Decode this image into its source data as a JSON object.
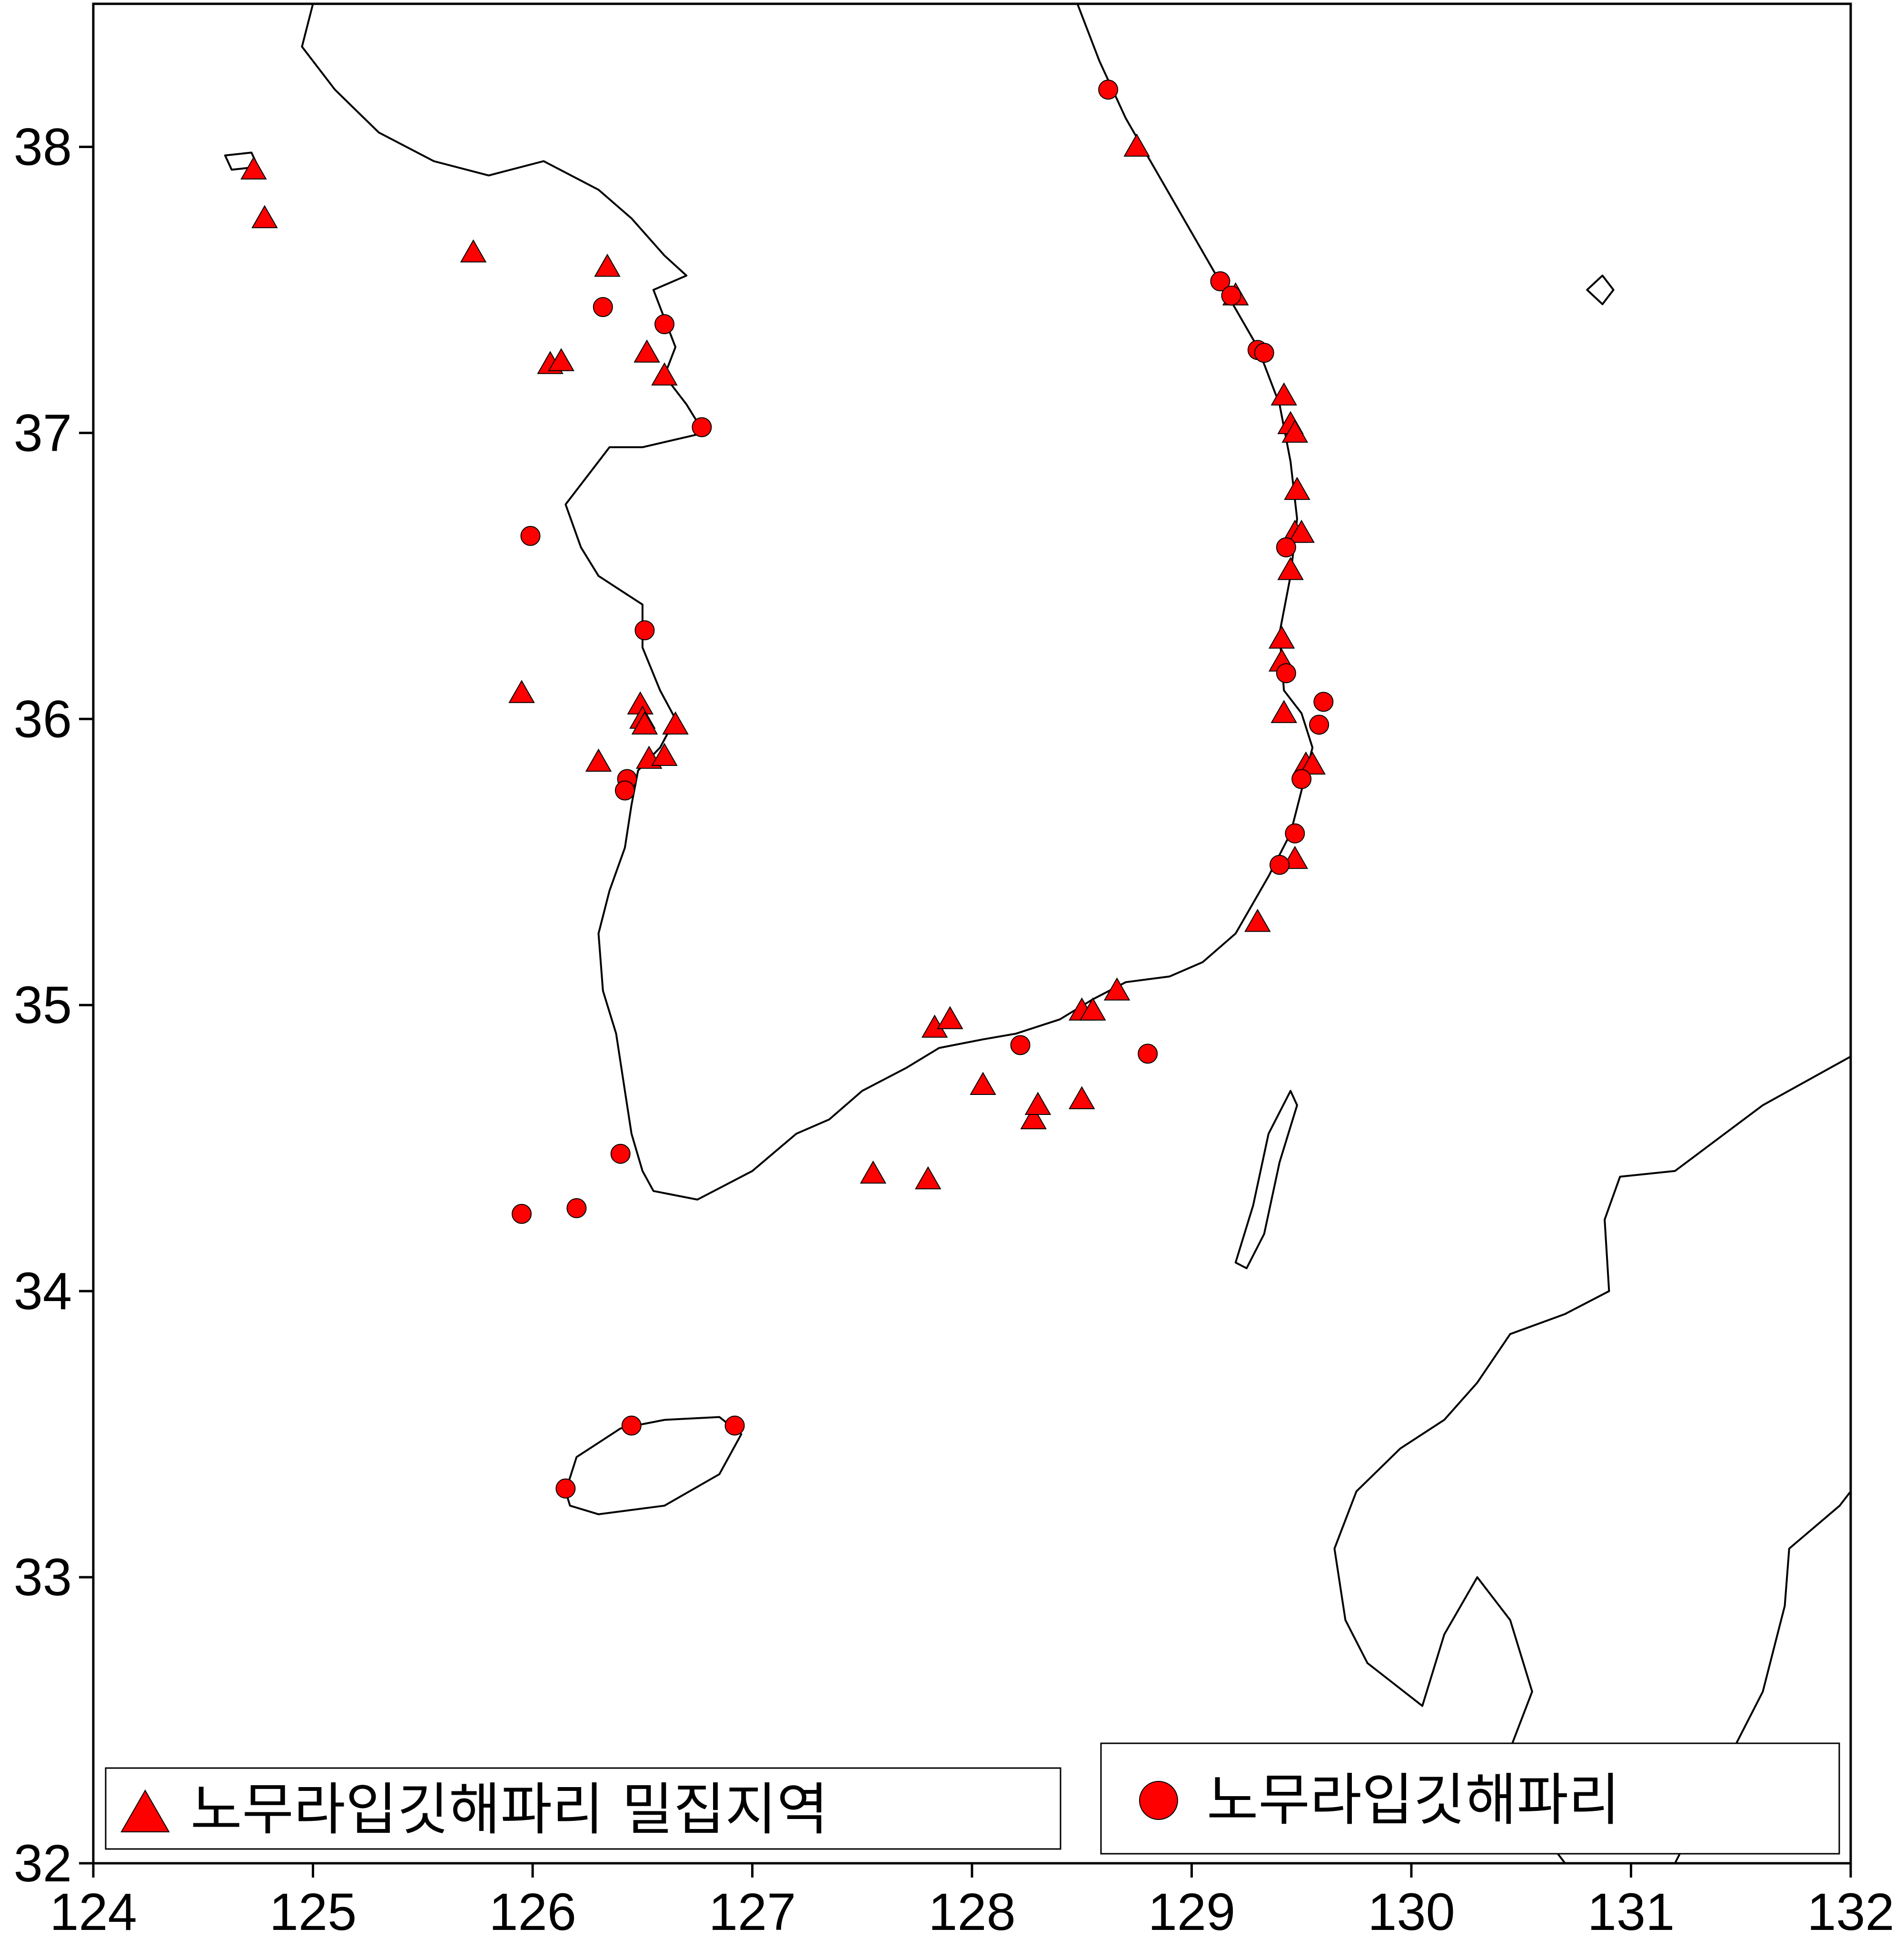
{
  "map": {
    "x_range": [
      124,
      132
    ],
    "y_range": [
      32,
      38.5
    ],
    "x_ticks": [
      "124",
      "125",
      "126",
      "127",
      "128",
      "129",
      "130",
      "131",
      "132"
    ],
    "y_ticks": [
      "32",
      "33",
      "34",
      "35",
      "36",
      "37",
      "38"
    ],
    "marker_color": "#ff0000",
    "coastline_color": "#000000"
  },
  "legend": {
    "triangle_label": "노무라입깃해파리 밀집지역",
    "circle_label": "노무라입깃해파리",
    "triangle_icon": "red-triangle-marker",
    "circle_icon": "red-circle-marker"
  },
  "chart_data": {
    "type": "scatter",
    "xlim": [
      124,
      132
    ],
    "ylim": [
      32,
      38.5
    ],
    "grid": false,
    "legend_placement": "bottom",
    "series": [
      {
        "name": "노무라입깃해파리 밀집지역",
        "marker": "triangle",
        "color": "#ff0000",
        "points": [
          [
            124.73,
            37.92
          ],
          [
            124.78,
            37.75
          ],
          [
            125.73,
            37.63
          ],
          [
            126.34,
            37.58
          ],
          [
            126.52,
            37.28
          ],
          [
            126.08,
            37.24
          ],
          [
            126.13,
            37.25
          ],
          [
            126.6,
            37.2
          ],
          [
            125.95,
            36.09
          ],
          [
            126.49,
            36.05
          ],
          [
            126.5,
            36.0
          ],
          [
            126.51,
            35.98
          ],
          [
            126.65,
            35.98
          ],
          [
            126.3,
            35.85
          ],
          [
            126.53,
            35.86
          ],
          [
            126.6,
            35.87
          ],
          [
            127.55,
            34.41
          ],
          [
            127.8,
            34.39
          ],
          [
            127.83,
            34.92
          ],
          [
            127.9,
            34.95
          ],
          [
            128.05,
            34.72
          ],
          [
            128.28,
            34.6
          ],
          [
            128.3,
            34.65
          ],
          [
            128.5,
            34.67
          ],
          [
            128.5,
            34.98
          ],
          [
            128.55,
            34.98
          ],
          [
            128.66,
            35.05
          ],
          [
            128.75,
            38.0
          ],
          [
            129.2,
            37.48
          ],
          [
            129.42,
            37.13
          ],
          [
            129.45,
            37.03
          ],
          [
            129.47,
            37.0
          ],
          [
            129.48,
            36.8
          ],
          [
            129.47,
            36.65
          ],
          [
            129.5,
            36.65
          ],
          [
            129.45,
            36.52
          ],
          [
            129.41,
            36.28
          ],
          [
            129.41,
            36.2
          ],
          [
            129.42,
            36.02
          ],
          [
            129.52,
            35.84
          ],
          [
            129.55,
            35.84
          ],
          [
            129.47,
            35.51
          ],
          [
            129.3,
            35.29
          ]
        ]
      },
      {
        "name": "노무라입깃해파리",
        "marker": "circle",
        "color": "#ff0000",
        "points": [
          [
            128.62,
            38.2
          ],
          [
            129.13,
            37.53
          ],
          [
            129.18,
            37.48
          ],
          [
            129.3,
            37.29
          ],
          [
            129.33,
            37.28
          ],
          [
            126.32,
            37.44
          ],
          [
            126.6,
            37.38
          ],
          [
            126.77,
            37.02
          ],
          [
            125.99,
            36.64
          ],
          [
            126.51,
            36.31
          ],
          [
            126.43,
            35.79
          ],
          [
            126.42,
            35.75
          ],
          [
            129.43,
            36.6
          ],
          [
            129.43,
            36.16
          ],
          [
            129.6,
            36.06
          ],
          [
            129.58,
            35.98
          ],
          [
            129.5,
            35.79
          ],
          [
            129.47,
            35.6
          ],
          [
            129.4,
            35.49
          ],
          [
            128.22,
            34.86
          ],
          [
            128.8,
            34.83
          ],
          [
            126.4,
            34.48
          ],
          [
            125.95,
            34.27
          ],
          [
            126.2,
            34.29
          ],
          [
            126.45,
            33.53
          ],
          [
            126.92,
            33.53
          ],
          [
            126.15,
            33.31
          ]
        ]
      }
    ]
  }
}
